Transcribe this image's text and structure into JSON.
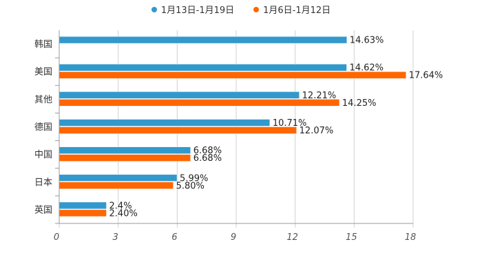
{
  "chart_data": {
    "type": "bar",
    "orientation": "horizontal",
    "title": "",
    "xlabel": "",
    "ylabel": "",
    "xlim": [
      0,
      18
    ],
    "xticks": [
      "0",
      "3",
      "6",
      "9",
      "12",
      "15",
      "18"
    ],
    "categories": [
      "韩国",
      "美国",
      "其他",
      "德国",
      "中国",
      "日本",
      "英国"
    ],
    "series": [
      {
        "name": "1月13日-1月19日",
        "color": "#3399cc",
        "values": [
          14.63,
          14.62,
          12.21,
          10.71,
          6.68,
          5.99,
          2.4
        ],
        "labels": [
          "14.63%",
          "14.62%",
          "12.21%",
          "10.71%",
          "6.68%",
          "5.99%",
          "2.4%"
        ]
      },
      {
        "name": "1月6日-1月12日",
        "color": "#ff6600",
        "values": [
          null,
          17.64,
          14.25,
          12.07,
          6.68,
          5.8,
          2.4
        ],
        "labels": [
          "",
          "17.64%",
          "14.25%",
          "12.07%",
          "6.68%",
          "5.80%",
          "2.40%"
        ]
      }
    ],
    "legend_position": "top-center",
    "grid": true
  }
}
